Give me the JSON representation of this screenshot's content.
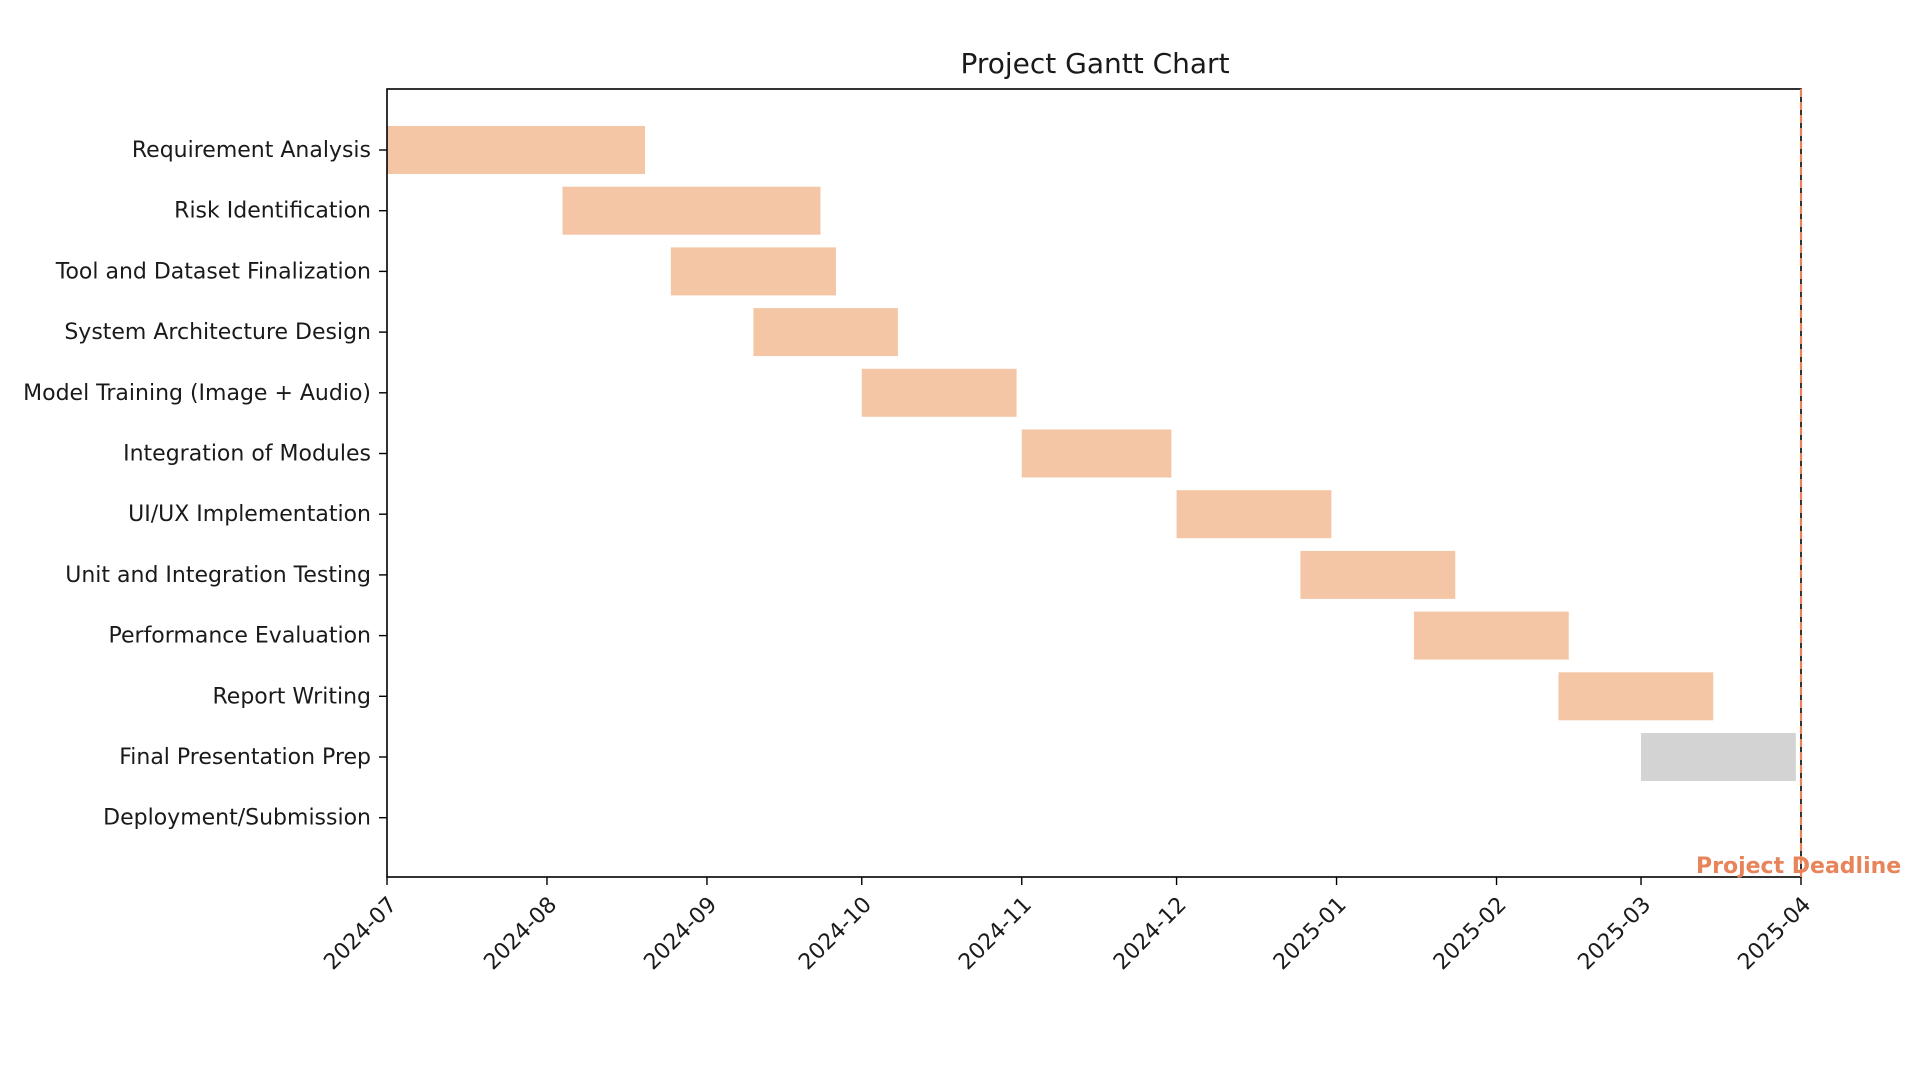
{
  "chart_data": {
    "type": "gantt",
    "title": "Project Gantt Chart",
    "xlabel": "",
    "ylabel": "",
    "x_ticks": [
      "2024-07",
      "2024-08",
      "2024-09",
      "2024-10",
      "2024-11",
      "2024-12",
      "2025-01",
      "2025-02",
      "2025-03",
      "2025-04"
    ],
    "xlim": [
      "2024-07-01",
      "2025-04-01"
    ],
    "tasks": [
      {
        "name": "Requirement Analysis",
        "start": "2024-07-01",
        "end": "2024-08-20",
        "status": "done"
      },
      {
        "name": "Risk Identification",
        "start": "2024-08-04",
        "end": "2024-09-23",
        "status": "done"
      },
      {
        "name": "Tool and Dataset Finalization",
        "start": "2024-08-25",
        "end": "2024-09-26",
        "status": "done"
      },
      {
        "name": "System Architecture Design",
        "start": "2024-09-10",
        "end": "2024-10-08",
        "status": "done"
      },
      {
        "name": "Model Training (Image + Audio)",
        "start": "2024-10-01",
        "end": "2024-10-31",
        "status": "done"
      },
      {
        "name": "Integration of Modules",
        "start": "2024-11-01",
        "end": "2024-11-30",
        "status": "done"
      },
      {
        "name": "UI/UX Implementation",
        "start": "2024-12-01",
        "end": "2024-12-31",
        "status": "done"
      },
      {
        "name": "Unit and Integration Testing",
        "start": "2024-12-25",
        "end": "2025-01-24",
        "status": "done"
      },
      {
        "name": "Performance Evaluation",
        "start": "2025-01-16",
        "end": "2025-02-15",
        "status": "done"
      },
      {
        "name": "Report Writing",
        "start": "2025-02-13",
        "end": "2025-03-15",
        "status": "done"
      },
      {
        "name": "Final Presentation Prep",
        "start": "2025-03-01",
        "end": "2025-03-31",
        "status": "pending"
      },
      {
        "name": "Deployment/Submission",
        "start": null,
        "end": null,
        "status": "pending"
      }
    ],
    "deadline": {
      "date": "2025-04-01",
      "label": "Project Deadline"
    },
    "grid": false,
    "colors": {
      "done": "#f5c6a5",
      "pending": "#d3d3d3",
      "deadline": "#e8845a",
      "axis": "#000000"
    }
  }
}
